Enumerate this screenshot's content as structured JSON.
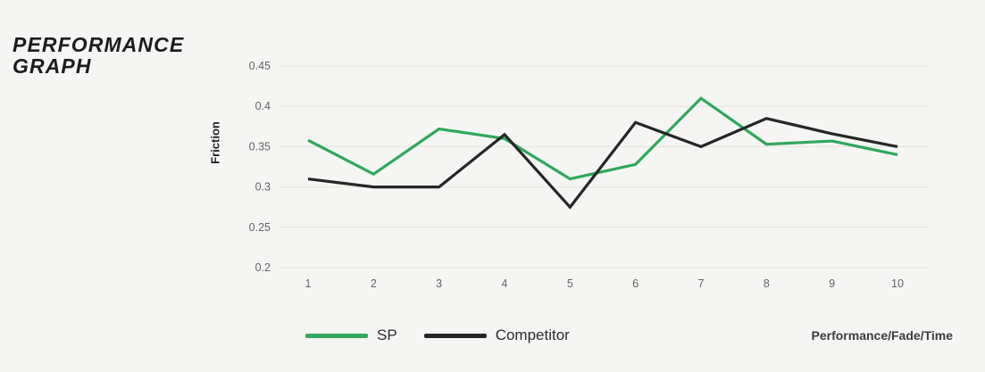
{
  "page": {
    "title_line1": "PERFORMANCE",
    "title_line2": "GRAPH",
    "footnote": "Performance/Fade/Time"
  },
  "legend": {
    "items": [
      {
        "label": "SP",
        "color": "#2fa85c"
      },
      {
        "label": "Competitor",
        "color": "#262626"
      }
    ]
  },
  "chart_data": {
    "type": "line",
    "title": "PERFORMANCE GRAPH",
    "xlabel": "Performance/Fade/Time",
    "ylabel": "Friction",
    "categories": [
      1,
      2,
      3,
      4,
      5,
      6,
      7,
      8,
      9,
      10
    ],
    "series": [
      {
        "name": "SP",
        "color": "#2fa85c",
        "values": [
          0.358,
          0.316,
          0.372,
          0.36,
          0.31,
          0.328,
          0.41,
          0.353,
          0.357,
          0.34
        ]
      },
      {
        "name": "Competitor",
        "color": "#262626",
        "values": [
          0.31,
          0.3,
          0.3,
          0.365,
          0.275,
          0.38,
          0.35,
          0.385,
          0.366,
          0.35
        ]
      }
    ],
    "ylim": [
      0.2,
      0.45
    ],
    "yticks": [
      0.45,
      0.4,
      0.35,
      0.3,
      0.25,
      0.2
    ],
    "grid": true,
    "legend_position": "bottom"
  },
  "colors": {
    "background": "#f5f5f3",
    "gridline": "#e3e3e0",
    "tick_text": "#636363",
    "accent_green": "#2fa85c",
    "line_black": "#262626"
  }
}
